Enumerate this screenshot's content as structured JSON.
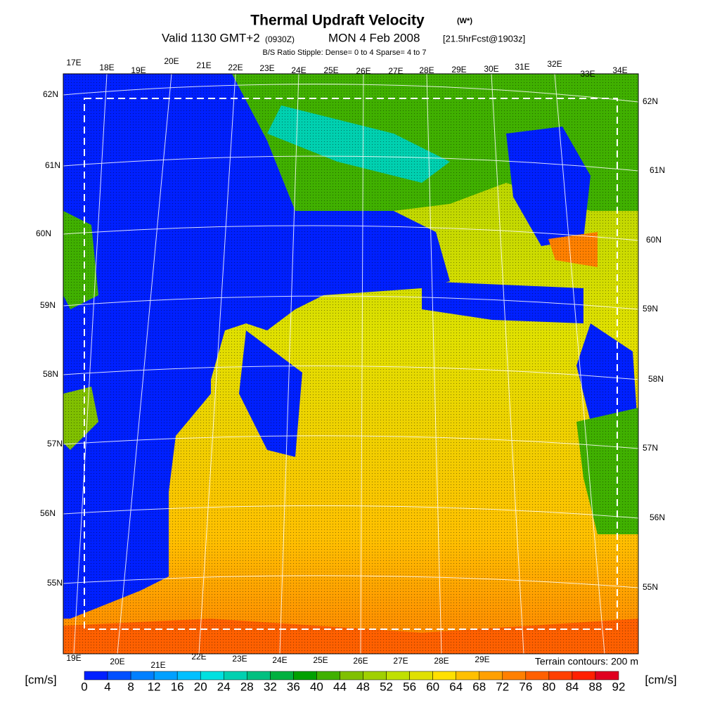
{
  "header": {
    "title": "Thermal Updraft Velocity",
    "title_note": "(W*)",
    "subtitle": [
      "Valid 1130 GMT+2",
      "(0930Z)",
      "MON 4 Feb 2008",
      "[21.5hrFcst@1903z]"
    ],
    "stipple_note": "B/S Ratio Stipple:  Dense= 0 to 4  Sparse= 4 to 7"
  },
  "map": {
    "top_lon_labels": [
      "17E",
      "18E",
      "19E",
      "20E",
      "21E",
      "22E",
      "23E",
      "24E",
      "25E",
      "26E",
      "27E",
      "28E",
      "29E",
      "30E",
      "31E",
      "32E",
      "33E",
      "34E"
    ],
    "bottom_lon_labels": [
      "19E",
      "20E",
      "21E",
      "22E",
      "23E",
      "24E",
      "25E",
      "26E",
      "27E",
      "28E",
      "29E"
    ],
    "left_lat_labels": [
      "62N",
      "61N",
      "60N",
      "59N",
      "58N",
      "57N",
      "56N",
      "55N"
    ],
    "right_lat_labels": [
      "62N",
      "61N",
      "60N",
      "59N",
      "58N",
      "57N",
      "56N",
      "55N"
    ],
    "terrain_note": "Terrain contours: 200 m"
  },
  "colorbar": {
    "unit_left": "[cm/s]",
    "unit_right": "[cm/s]",
    "labels": [
      "0",
      "4",
      "8",
      "12",
      "16",
      "20",
      "24",
      "28",
      "32",
      "36",
      "40",
      "44",
      "48",
      "52",
      "56",
      "60",
      "64",
      "68",
      "72",
      "76",
      "80",
      "84",
      "88",
      "92"
    ],
    "colors": [
      "#0020ff",
      "#0050ff",
      "#0080ff",
      "#00a0ff",
      "#00c0ff",
      "#00e0e0",
      "#00d0b0",
      "#00c080",
      "#00b040",
      "#00a000",
      "#40b000",
      "#80c000",
      "#a0d000",
      "#c0e000",
      "#e0e000",
      "#ffe000",
      "#ffc000",
      "#ffa000",
      "#ff8000",
      "#ff6000",
      "#ff4000",
      "#ff2000",
      "#e00020"
    ]
  }
}
